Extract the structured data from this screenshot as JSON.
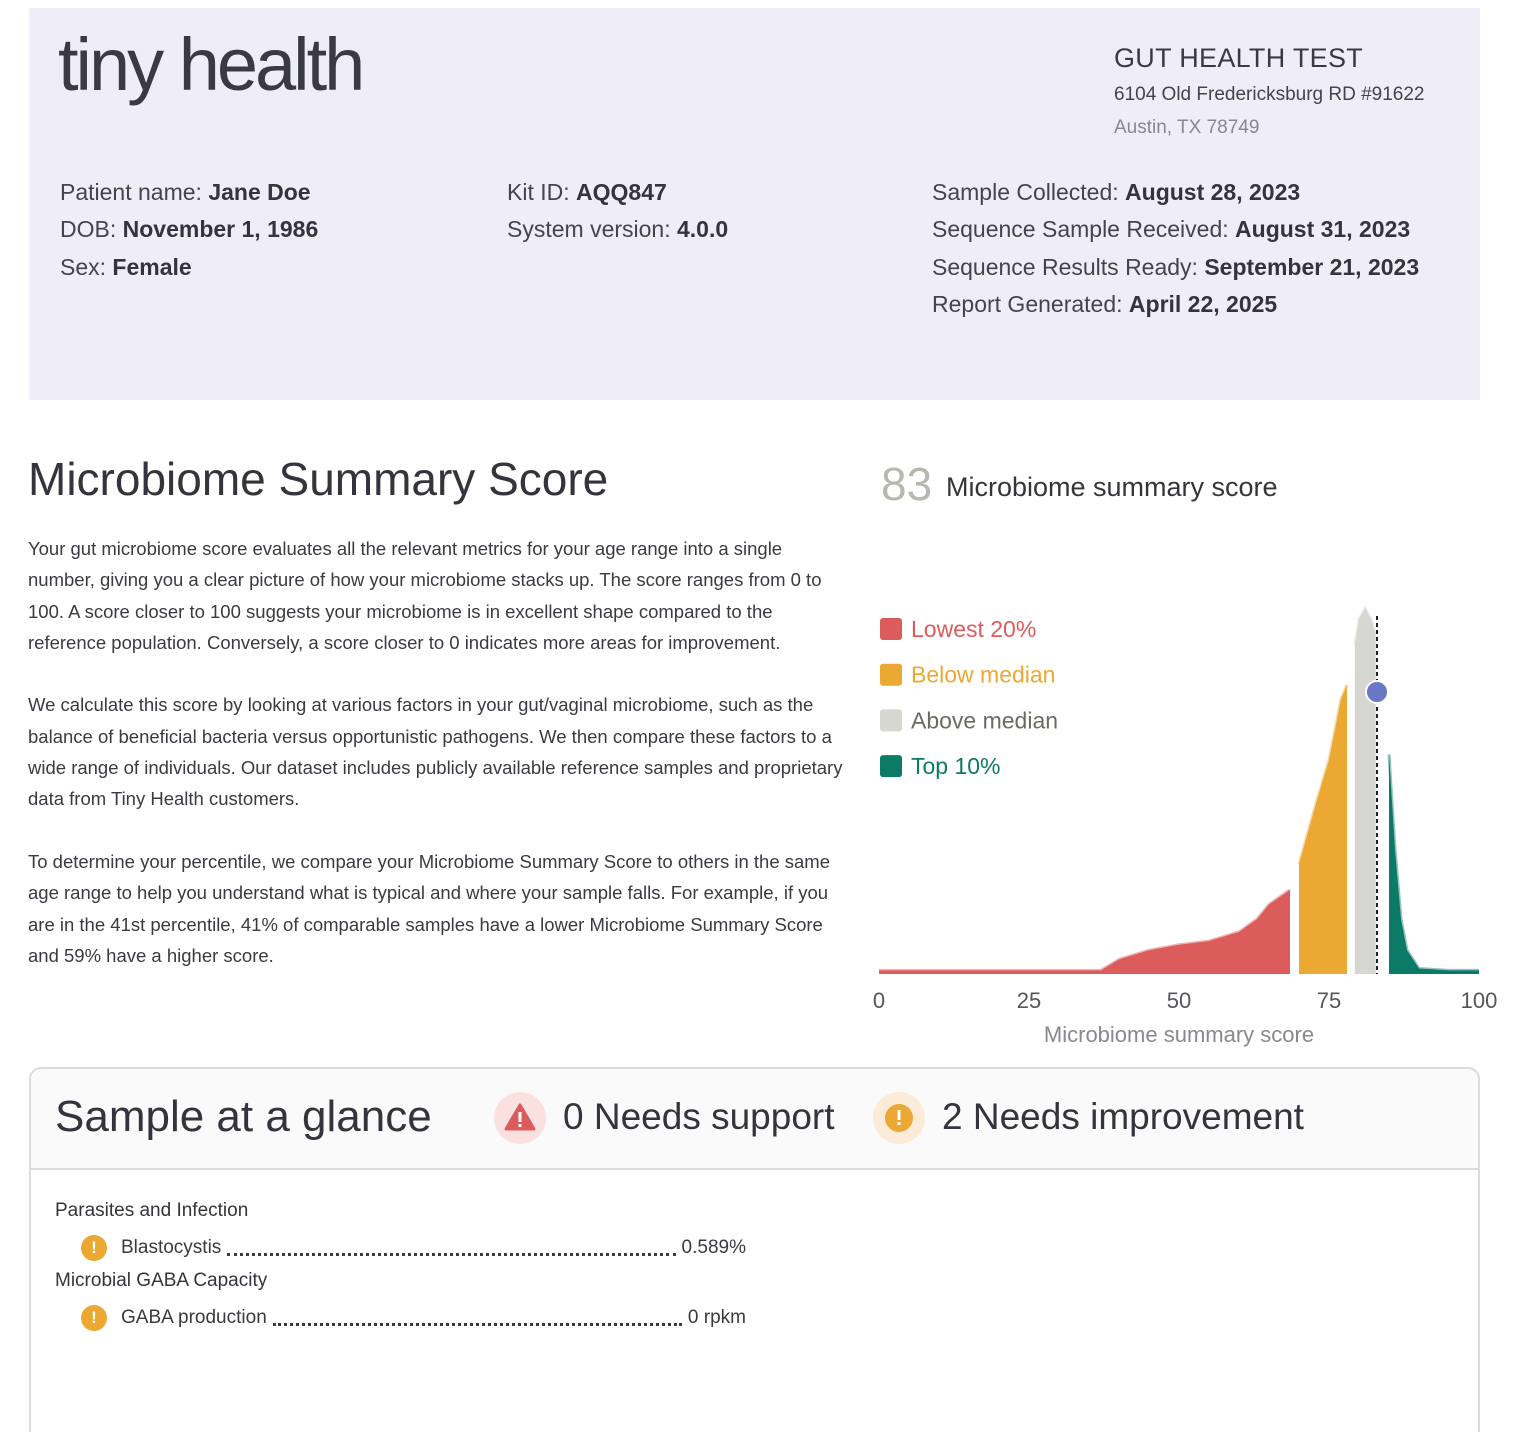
{
  "header": {
    "logo": "tiny health",
    "test_title": "GUT HEALTH TEST",
    "address_line1": "6104 Old Fredericksburg RD #91622",
    "address_line2": "Austin, TX 78749"
  },
  "patient": {
    "columns": [
      [
        {
          "label": "Patient name:",
          "value": "Jane Doe"
        },
        {
          "label": "DOB:",
          "value": "November 1, 1986"
        },
        {
          "label": "Sex:",
          "value": "Female"
        }
      ],
      [
        {
          "label": "Kit ID:",
          "value": "AQQ847"
        },
        {
          "label": "System version:",
          "value": "4.0.0"
        }
      ],
      [
        {
          "label": "Sample Collected:",
          "value": "August 28, 2023"
        },
        {
          "label": "Sequence Sample Received:",
          "value": "August 31, 2023"
        },
        {
          "label": "Sequence Results Ready:",
          "value": "September 21, 2023"
        },
        {
          "label": "Report Generated:",
          "value": "April 22, 2025"
        }
      ]
    ]
  },
  "summary": {
    "title": "Microbiome Summary Score",
    "paragraphs": [
      "Your gut microbiome score evaluates all the relevant metrics for your age range into a single number, giving you a clear picture of how your microbiome stacks up. The score ranges from 0 to 100. A score closer to 100 suggests your microbiome is in excellent shape compared to the reference population. Conversely, a score closer to 0 indicates more areas for improvement.",
      "We calculate this score by looking at various factors in your gut/vaginal microbiome, such as the balance of beneficial bacteria versus opportunistic pathogens. We then compare these factors to a wide range of individuals. Our dataset includes publicly available reference samples and proprietary data from Tiny Health customers.",
      "To determine your percentile, we compare your Microbiome Summary Score to others in the same age range to help you understand what is typical and where your sample falls. For example, if you are in the 41st percentile, 41% of comparable samples have a lower Microbiome Summary Score and 59% have a higher score."
    ]
  },
  "chart_data": {
    "type": "area",
    "score": 83,
    "title": "Microbiome summary score",
    "xlabel": "Microbiome summary score",
    "xlim": [
      0,
      100
    ],
    "xticks": [
      0,
      25,
      50,
      75,
      100
    ],
    "ylim": [
      0,
      1
    ],
    "legend": "upper-left",
    "series": [
      {
        "name": "Lowest 20%",
        "color": "#dc5c5c",
        "x": [
          0,
          10,
          20,
          30,
          37,
          40,
          45,
          50,
          55,
          60,
          63,
          65,
          68.5
        ],
        "values": [
          0.01,
          0.01,
          0.01,
          0.01,
          0.01,
          0.04,
          0.065,
          0.08,
          0.09,
          0.115,
          0.15,
          0.19,
          0.23
        ]
      },
      {
        "name": "Below median",
        "color": "#eba833",
        "x": [
          70,
          73,
          75,
          77,
          78
        ],
        "values": [
          0.3,
          0.475,
          0.585,
          0.75,
          0.79
        ]
      },
      {
        "name": "Above median",
        "color": "#d6d7d0",
        "x": [
          79.3,
          80,
          81,
          82,
          82.8
        ],
        "values": [
          0.9,
          0.97,
          1.0,
          0.97,
          0.93
        ]
      },
      {
        "name": "Top 10%",
        "color": "#0b7a66",
        "x": [
          85,
          86,
          87,
          88,
          90,
          95,
          100
        ],
        "values": [
          0.6,
          0.34,
          0.15,
          0.065,
          0.015,
          0.01,
          0.01
        ]
      }
    ]
  },
  "glance": {
    "title": "Sample at a glance",
    "support": {
      "count": 0,
      "label": "Needs support"
    },
    "improvement": {
      "count": 2,
      "label": "Needs improvement"
    },
    "groups": [
      {
        "title": "Parasites and Infection",
        "items": [
          {
            "name": "Blastocystis",
            "value": "0.589%"
          }
        ]
      },
      {
        "title": "Microbial GABA Capacity",
        "items": [
          {
            "name": "GABA production",
            "value": "0 rpkm"
          }
        ]
      }
    ]
  }
}
